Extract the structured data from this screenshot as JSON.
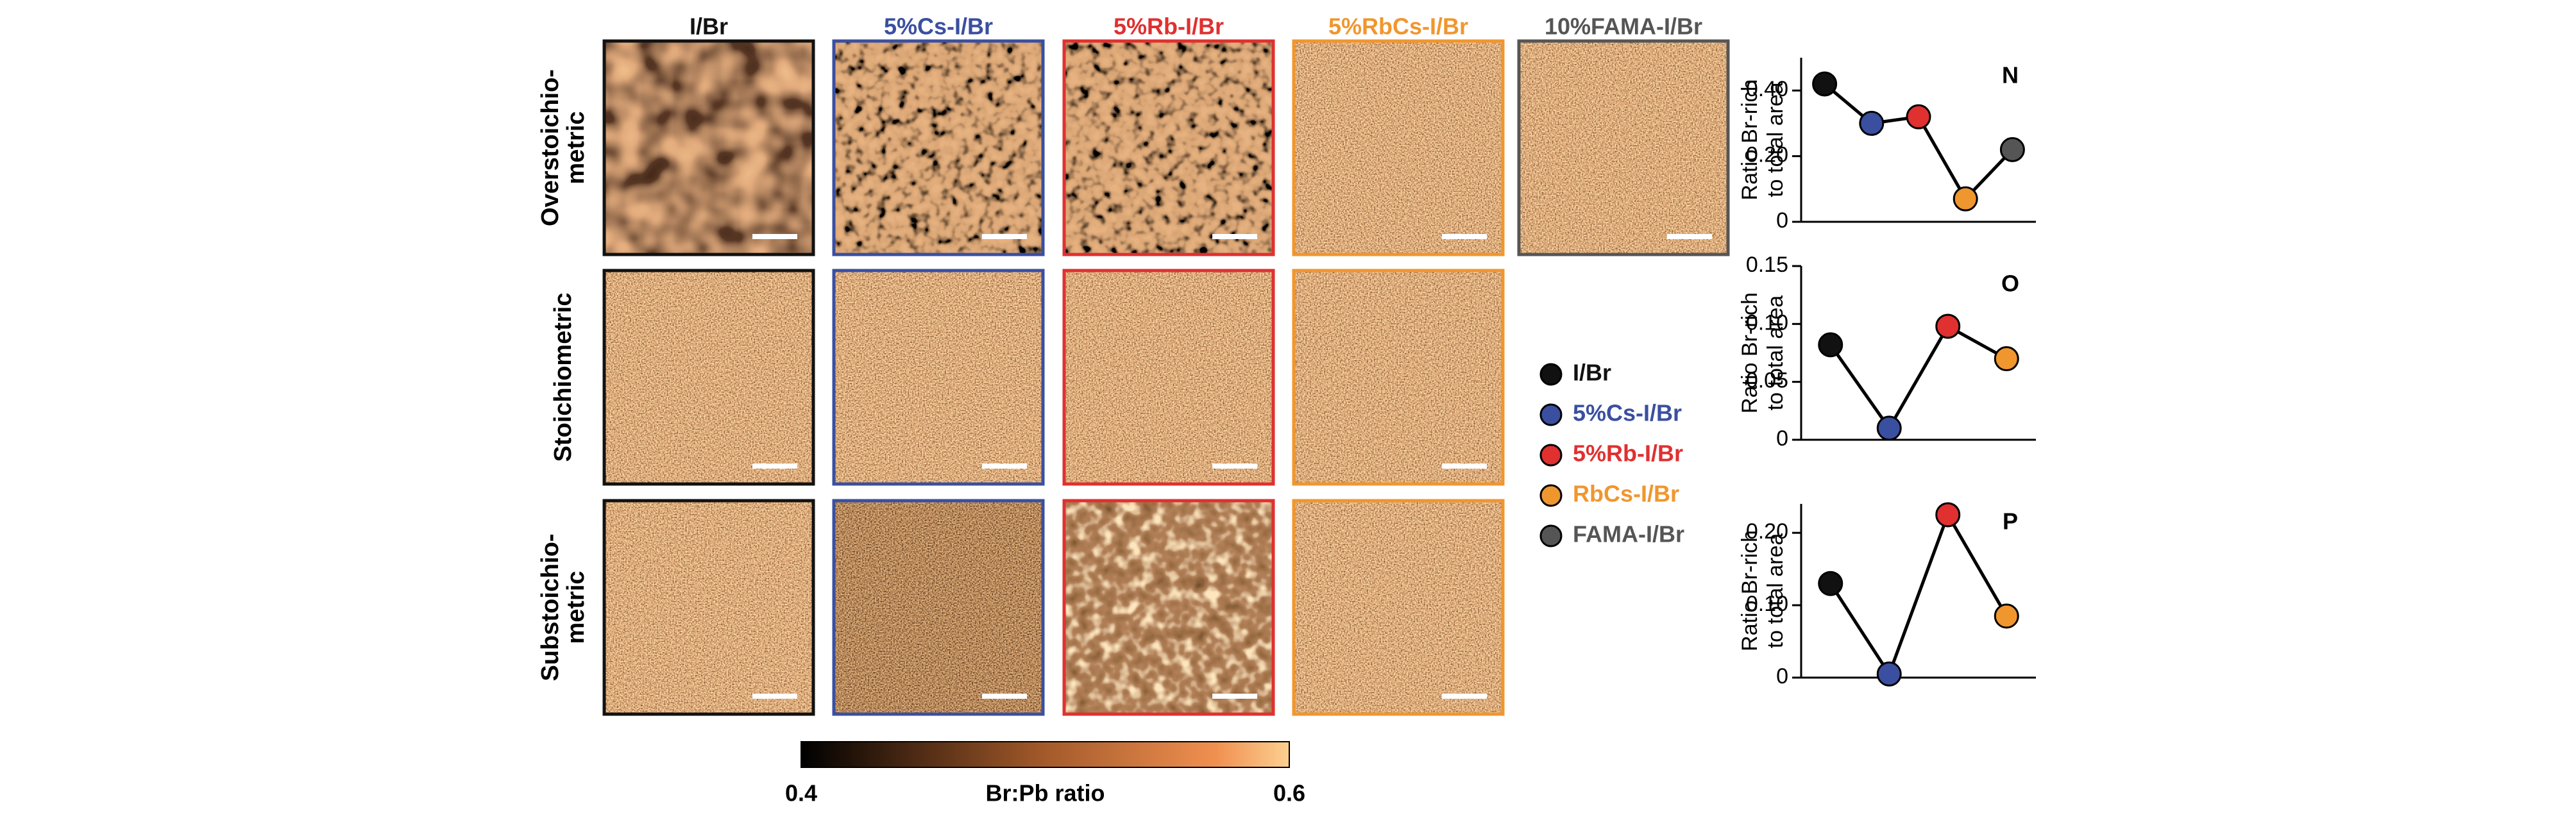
{
  "panel": {
    "columns": [
      {
        "title": "I/Br",
        "color": "#111111"
      },
      {
        "title": "5%Cs-I/Br",
        "color": "#3a4fa0"
      },
      {
        "title": "5%Rb-I/Br",
        "color": "#e03030"
      },
      {
        "title": "5%RbCs-I/Br",
        "color": "#f0962e"
      },
      {
        "title": "10%FAMA-I/Br",
        "color": "#555555"
      }
    ],
    "rows": [
      [
        "Overstoichio-",
        "metric"
      ],
      [
        "Stoichiometric"
      ],
      [
        "Substoichio-",
        "metric"
      ]
    ],
    "colorbar": {
      "label": "Br:Pb ratio",
      "ticks": [
        0.4,
        0.6
      ]
    },
    "legend": [
      {
        "name": "I/Br",
        "color": "#111111"
      },
      {
        "name": "5%Cs-I/Br",
        "color": "#3a4fa0"
      },
      {
        "name": "5%Rb-I/Br",
        "color": "#e03030"
      },
      {
        "name": "RbCs-I/Br",
        "color": "#f0962e"
      },
      {
        "name": "FAMA-I/Br",
        "color": "#555555"
      }
    ]
  },
  "chart_data": [
    {
      "type": "line",
      "label": "N",
      "ylabel": [
        "Ratio Br-rich",
        "to total area"
      ],
      "categories": [
        null,
        null,
        null,
        null,
        null
      ],
      "values": [
        0.42,
        0.3,
        0.32,
        0.07,
        0.22
      ],
      "colors": [
        "#111111",
        "#3a4fa0",
        "#e03030",
        "#f0962e",
        "#555555"
      ],
      "ylim": [
        0,
        0.5
      ],
      "yticks": [
        0,
        {
          "value": 0.2,
          "label": "0.20"
        },
        {
          "value": 0.4,
          "label": "0.40"
        }
      ]
    },
    {
      "type": "line",
      "label": "O",
      "ylabel": [
        "Ratio Br-rich",
        "to total area"
      ],
      "categories": [
        null,
        null,
        null,
        null
      ],
      "values": [
        0.082,
        0.01,
        0.098,
        0.07
      ],
      "colors": [
        "#111111",
        "#3a4fa0",
        "#e03030",
        "#f0962e"
      ],
      "ylim": [
        0,
        0.15
      ],
      "yticks": [
        0,
        {
          "value": 0.05,
          "label": "0.05"
        },
        {
          "value": 0.1,
          "label": "0.10"
        },
        {
          "value": 0.15,
          "label": "0.15"
        }
      ]
    },
    {
      "type": "line",
      "label": "P",
      "ylabel": [
        "Ratio Br-rich",
        "to total area"
      ],
      "categories": [
        null,
        null,
        null,
        null
      ],
      "values": [
        0.13,
        0.005,
        0.225,
        0.085
      ],
      "colors": [
        "#111111",
        "#3a4fa0",
        "#e03030",
        "#f0962e"
      ],
      "ylim": [
        0,
        0.24
      ],
      "yticks": [
        0,
        {
          "value": 0.1,
          "label": "0.10"
        },
        {
          "value": 0.2,
          "label": "0.20"
        }
      ]
    }
  ]
}
